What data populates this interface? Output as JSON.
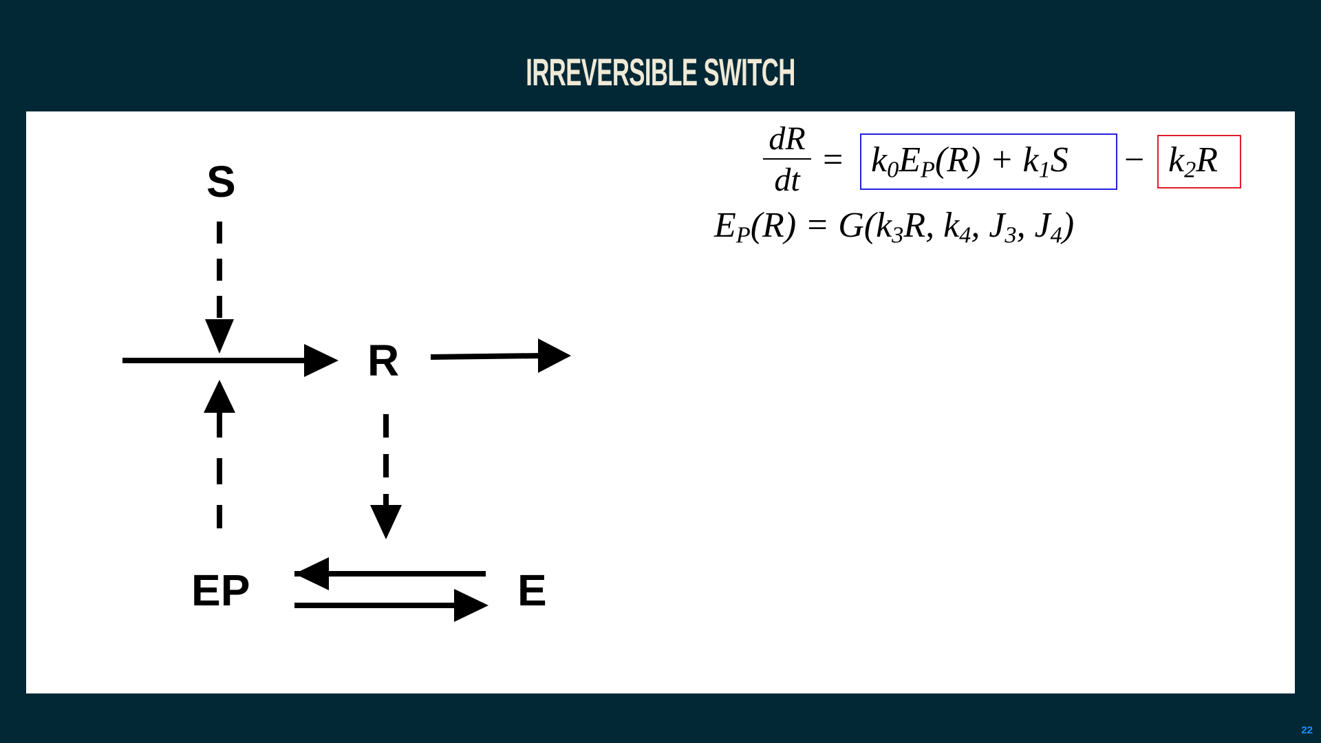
{
  "slide": {
    "title": "IRREVERSIBLE SWITCH",
    "page_number": "22"
  },
  "diagram": {
    "nodes": {
      "S": "S",
      "R": "R",
      "EP": "EP",
      "E": "E"
    }
  },
  "equations": {
    "eq1": {
      "lhs_num": "dR",
      "lhs_den": "dt",
      "equals": "=",
      "blue_term_k0": "k",
      "blue_term_k0_sub": "0",
      "blue_term_E": "E",
      "blue_term_E_sub": "P",
      "blue_term_rest": "(R) + k",
      "blue_term_k1_sub": "1",
      "blue_term_S": "S",
      "minus": "−",
      "red_term_k": "k",
      "red_term_sub": "2",
      "red_term_R": "R"
    },
    "eq2": {
      "E": "E",
      "E_sub": "P",
      "mid": "(R) = G(k",
      "k3_sub": "3",
      "after_k3": "R, k",
      "k4_sub": "4",
      "after_k4": ", J",
      "J3_sub": "3",
      "after_J3": ", J",
      "J4_sub": "4",
      "close": ")"
    }
  },
  "colors": {
    "background": "#022836",
    "title": "#efe9d6",
    "blue_box": "#2222dd",
    "red_box": "#e01b2a",
    "page_number": "#1e90ff"
  }
}
